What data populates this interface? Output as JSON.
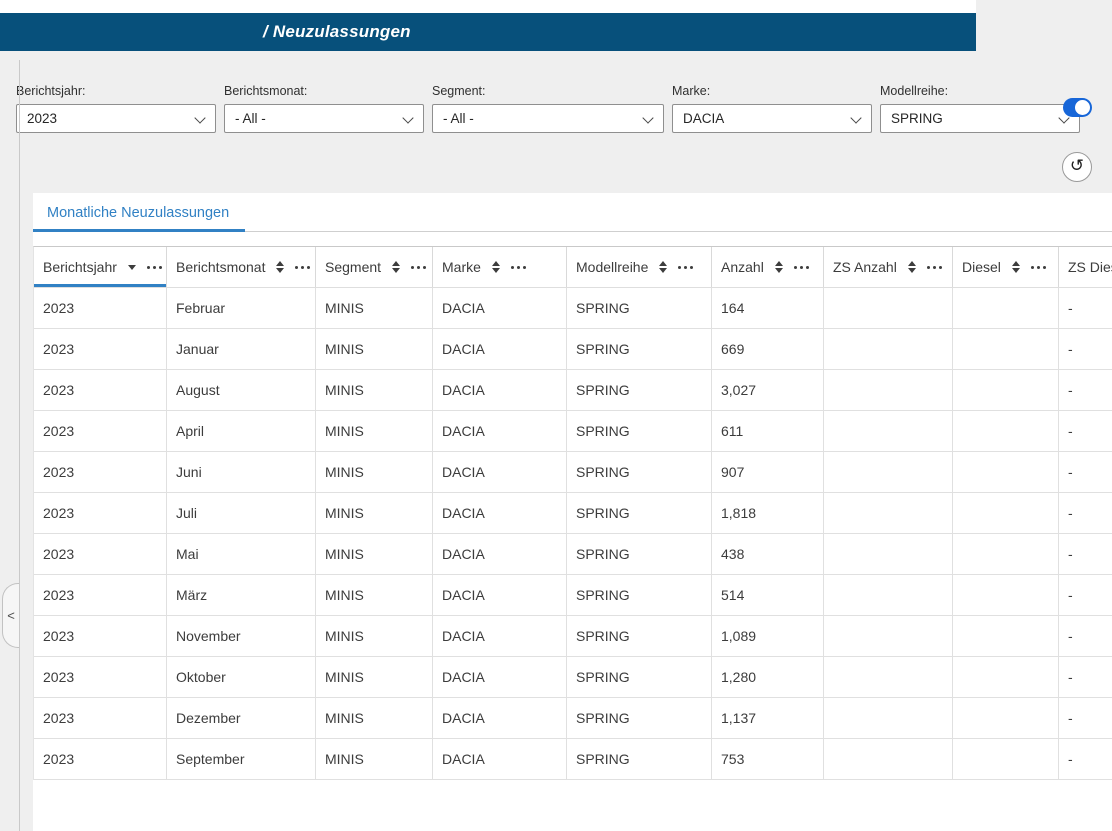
{
  "header": {
    "title": "/ Neuzulassungen"
  },
  "filters": [
    {
      "label": "Berichtsjahr:",
      "value": "2023"
    },
    {
      "label": "Berichtsmonat:",
      "value": "- All -"
    },
    {
      "label": "Segment:",
      "value": "- All -"
    },
    {
      "label": "Marke:",
      "value": "DACIA"
    },
    {
      "label": "Modellreihe:",
      "value": "SPRING"
    }
  ],
  "controls": {
    "toggle_state": "on",
    "toggle_icon": "toggle-on-icon",
    "reset_icon": "rotate-ccw-icon",
    "reset_glyph": "↺",
    "collapse_icon": "chevron-left-icon",
    "collapse_glyph": "<",
    "select_chevron_icon": "chevron-down-icon"
  },
  "tab": {
    "label": "Monatliche Neuzulassungen"
  },
  "table": {
    "columns": [
      {
        "label": "Berichtsjahr",
        "sort": "desc"
      },
      {
        "label": "Berichtsmonat",
        "sort": "none"
      },
      {
        "label": "Segment",
        "sort": "none"
      },
      {
        "label": "Marke",
        "sort": "none"
      },
      {
        "label": "Modellreihe",
        "sort": "none"
      },
      {
        "label": "Anzahl",
        "sort": "none"
      },
      {
        "label": "ZS Anzahl",
        "sort": "none"
      },
      {
        "label": "Diesel",
        "sort": "none"
      },
      {
        "label": "ZS Diesel",
        "sort": "none"
      }
    ],
    "rows": [
      [
        "2023",
        "Februar",
        "MINIS",
        "DACIA",
        "SPRING",
        "164",
        "",
        "",
        "-"
      ],
      [
        "2023",
        "Januar",
        "MINIS",
        "DACIA",
        "SPRING",
        "669",
        "",
        "",
        "-"
      ],
      [
        "2023",
        "August",
        "MINIS",
        "DACIA",
        "SPRING",
        "3,027",
        "",
        "",
        "-"
      ],
      [
        "2023",
        "April",
        "MINIS",
        "DACIA",
        "SPRING",
        "611",
        "",
        "",
        "-"
      ],
      [
        "2023",
        "Juni",
        "MINIS",
        "DACIA",
        "SPRING",
        "907",
        "",
        "",
        "-"
      ],
      [
        "2023",
        "Juli",
        "MINIS",
        "DACIA",
        "SPRING",
        "1,818",
        "",
        "",
        "-"
      ],
      [
        "2023",
        "Mai",
        "MINIS",
        "DACIA",
        "SPRING",
        "438",
        "",
        "",
        "-"
      ],
      [
        "2023",
        "März",
        "MINIS",
        "DACIA",
        "SPRING",
        "514",
        "",
        "",
        "-"
      ],
      [
        "2023",
        "November",
        "MINIS",
        "DACIA",
        "SPRING",
        "1,089",
        "",
        "",
        "-"
      ],
      [
        "2023",
        "Oktober",
        "MINIS",
        "DACIA",
        "SPRING",
        "1,280",
        "",
        "",
        "-"
      ],
      [
        "2023",
        "Dezember",
        "MINIS",
        "DACIA",
        "SPRING",
        "1,137",
        "",
        "",
        "-"
      ],
      [
        "2023",
        "September",
        "MINIS",
        "DACIA",
        "SPRING",
        "753",
        "",
        "",
        "-"
      ]
    ]
  },
  "colors": {
    "header_bar": "#07507B",
    "accent_blue": "#3181C4",
    "toggle_blue": "#1766D8",
    "background_gray": "#efefef"
  }
}
